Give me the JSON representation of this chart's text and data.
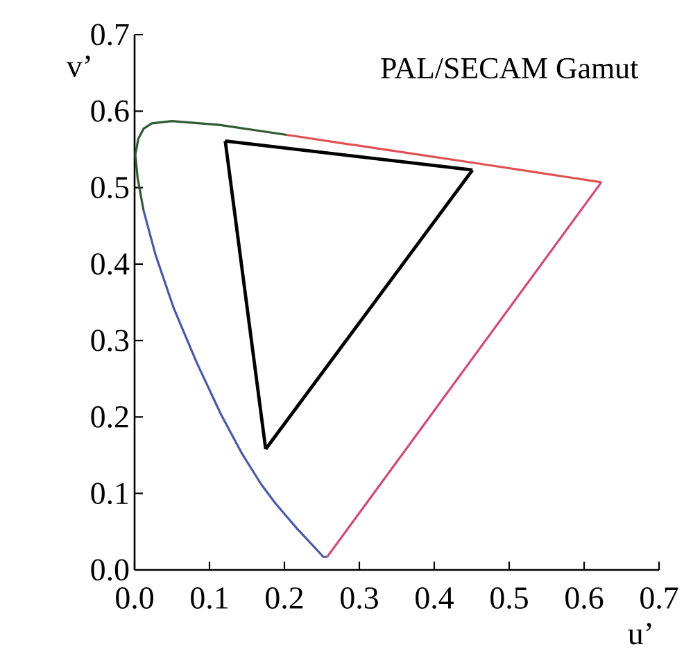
{
  "chart_data": {
    "type": "line",
    "title": "PAL/SECAM Gamut",
    "xlabel": "u’",
    "ylabel": "v’",
    "xlim": [
      0,
      0.7
    ],
    "ylim": [
      0,
      0.7
    ],
    "xticks": [
      {
        "value": 0,
        "label": "0.0"
      },
      0.1,
      0.2,
      0.3,
      0.4,
      0.5,
      0.6,
      0.7
    ],
    "yticks": [
      {
        "value": 0,
        "label": "0.0"
      },
      0.1,
      0.2,
      0.3,
      0.4,
      0.5,
      0.6,
      0.7
    ],
    "grid": false,
    "marker": "none",
    "line_style": "solid",
    "series": [
      {
        "color": "#4a5aa8",
        "x": [
          0.257,
          0.252,
          0.235,
          0.216,
          0.188,
          0.169,
          0.144,
          0.115,
          0.083,
          0.052,
          0.028,
          0.012
        ],
        "values": [
          0.017,
          0.017,
          0.035,
          0.055,
          0.087,
          0.112,
          0.151,
          0.204,
          0.271,
          0.343,
          0.412,
          0.47
        ]
      },
      {
        "color": "#2f5a35",
        "x": [
          0.012,
          0.004,
          0.001,
          0.005,
          0.012,
          0.023,
          0.05,
          0.113,
          0.203
        ],
        "values": [
          0.47,
          0.513,
          0.543,
          0.564,
          0.577,
          0.584,
          0.587,
          0.582,
          0.569
        ]
      },
      {
        "color": "#e05050",
        "x": [
          0.203,
          0.332,
          0.469,
          0.583,
          0.623
        ],
        "values": [
          0.569,
          0.55,
          0.53,
          0.513,
          0.507
        ]
      },
      {
        "color": "#d04a7a",
        "x": [
          0.623,
          0.257
        ],
        "values": [
          0.507,
          0.017
        ]
      },
      {
        "color": "#000000",
        "x": [
          0.121,
          0.451
        ],
        "values": [
          0.561,
          0.523
        ]
      },
      {
        "color": "#000000",
        "x": [
          0.175,
          0.451
        ],
        "values": [
          0.158,
          0.523
        ]
      },
      {
        "color": "#000000",
        "x": [
          0.121,
          0.175
        ],
        "values": [
          0.561,
          0.158
        ]
      }
    ]
  }
}
